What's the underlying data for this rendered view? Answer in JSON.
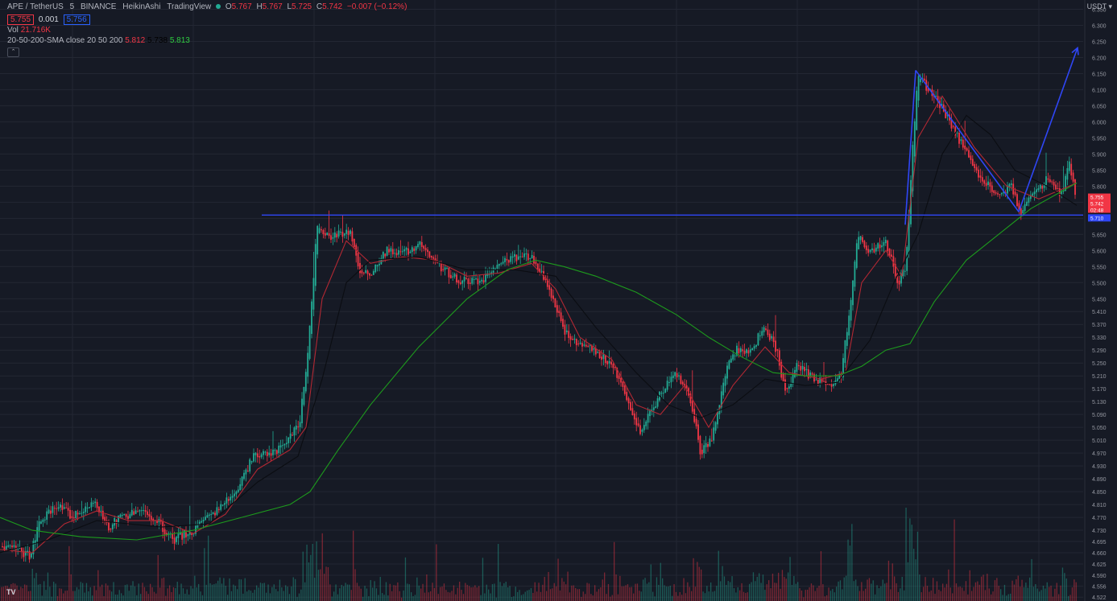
{
  "header": {
    "symbol": "APE / TetherUS",
    "interval": "5",
    "exchange": "BINANCE",
    "chart_style": "HeikinAshi",
    "source": "TradingView",
    "bid": "5.755",
    "spread": "0.001",
    "ask": "5.756",
    "o_label": "O",
    "o_value": "5.767",
    "h_label": "H",
    "h_value": "5.767",
    "l_label": "L",
    "l_value": "5.725",
    "c_label": "C",
    "c_value": "5.742",
    "change": "−0.007 (−0.12%)"
  },
  "volume_legend": {
    "label": "Vol",
    "value": "21.716K"
  },
  "sma_legend": {
    "label": "20-50-200-SMA close 20 50 200",
    "v20": "5.812",
    "v50": "5.738",
    "v200": "5.813"
  },
  "price_axis": {
    "unit": "USDT"
  },
  "colors": {
    "background": "#161a25",
    "grid": "#232733",
    "up": "#22ab94",
    "down": "#f23645",
    "sma20": "#b22833",
    "sma50": "#0b0d12",
    "sma200": "#1d9a1d",
    "drawing": "#2f46f5"
  },
  "chart_data": {
    "type": "candlestick",
    "chart_style": "HeikinAshi",
    "ylim": [
      4.52,
      6.36
    ],
    "y_ticks": [
      "6.350",
      "6.300",
      "6.250",
      "6.200",
      "6.150",
      "6.100",
      "6.050",
      "6.000",
      "5.950",
      "5.900",
      "5.850",
      "5.800",
      "5.750",
      "5.700",
      "5.650",
      "5.600",
      "5.550",
      "5.500",
      "5.450",
      "5.410",
      "5.370",
      "5.330",
      "5.290",
      "5.250",
      "5.210",
      "5.170",
      "5.130",
      "5.090",
      "5.050",
      "5.010",
      "4.970",
      "4.930",
      "4.890",
      "4.850",
      "4.810",
      "4.770",
      "4.730",
      "4.695",
      "4.660",
      "4.625",
      "4.590",
      "4.556",
      "4.522"
    ],
    "price_path": [
      [
        0,
        4.68
      ],
      [
        20,
        4.67
      ],
      [
        38,
        4.65
      ],
      [
        48,
        4.75
      ],
      [
        70,
        4.81
      ],
      [
        90,
        4.77
      ],
      [
        115,
        4.82
      ],
      [
        135,
        4.74
      ],
      [
        150,
        4.77
      ],
      [
        175,
        4.79
      ],
      [
        195,
        4.76
      ],
      [
        215,
        4.7
      ],
      [
        240,
        4.73
      ],
      [
        265,
        4.78
      ],
      [
        290,
        4.84
      ],
      [
        315,
        4.96
      ],
      [
        345,
        4.98
      ],
      [
        372,
        5.06
      ],
      [
        382,
        5.28
      ],
      [
        394,
        5.68
      ],
      [
        410,
        5.64
      ],
      [
        420,
        5.65
      ],
      [
        435,
        5.66
      ],
      [
        448,
        5.52
      ],
      [
        460,
        5.53
      ],
      [
        480,
        5.6
      ],
      [
        500,
        5.59
      ],
      [
        520,
        5.62
      ],
      [
        545,
        5.55
      ],
      [
        570,
        5.51
      ],
      [
        595,
        5.5
      ],
      [
        615,
        5.55
      ],
      [
        640,
        5.58
      ],
      [
        660,
        5.58
      ],
      [
        675,
        5.52
      ],
      [
        690,
        5.42
      ],
      [
        705,
        5.33
      ],
      [
        720,
        5.3
      ],
      [
        740,
        5.29
      ],
      [
        765,
        5.22
      ],
      [
        780,
        5.12
      ],
      [
        795,
        5.04
      ],
      [
        815,
        5.13
      ],
      [
        835,
        5.22
      ],
      [
        850,
        5.19
      ],
      [
        860,
        5.1
      ],
      [
        870,
        4.97
      ],
      [
        885,
        5.02
      ],
      [
        900,
        5.22
      ],
      [
        915,
        5.29
      ],
      [
        930,
        5.28
      ],
      [
        950,
        5.37
      ],
      [
        965,
        5.28
      ],
      [
        975,
        5.15
      ],
      [
        990,
        5.24
      ],
      [
        1010,
        5.2
      ],
      [
        1030,
        5.18
      ],
      [
        1045,
        5.22
      ],
      [
        1055,
        5.42
      ],
      [
        1065,
        5.65
      ],
      [
        1080,
        5.6
      ],
      [
        1100,
        5.63
      ],
      [
        1115,
        5.5
      ],
      [
        1125,
        5.55
      ],
      [
        1135,
        5.99
      ],
      [
        1140,
        6.14
      ],
      [
        1160,
        6.08
      ],
      [
        1180,
        6.0
      ],
      [
        1200,
        5.9
      ],
      [
        1220,
        5.82
      ],
      [
        1240,
        5.77
      ],
      [
        1255,
        5.8
      ],
      [
        1268,
        5.72
      ],
      [
        1285,
        5.78
      ],
      [
        1300,
        5.82
      ],
      [
        1318,
        5.77
      ],
      [
        1328,
        5.88
      ],
      [
        1337,
        5.742
      ]
    ],
    "sma_series": [
      {
        "name": "20",
        "color": "#b22833",
        "points": [
          [
            0,
            4.67
          ],
          [
            40,
            4.66
          ],
          [
            80,
            4.75
          ],
          [
            120,
            4.79
          ],
          [
            160,
            4.76
          ],
          [
            200,
            4.76
          ],
          [
            240,
            4.72
          ],
          [
            280,
            4.78
          ],
          [
            320,
            4.92
          ],
          [
            360,
            4.98
          ],
          [
            380,
            5.05
          ],
          [
            400,
            5.45
          ],
          [
            430,
            5.63
          ],
          [
            460,
            5.56
          ],
          [
            500,
            5.58
          ],
          [
            540,
            5.57
          ],
          [
            580,
            5.52
          ],
          [
            620,
            5.53
          ],
          [
            660,
            5.56
          ],
          [
            690,
            5.48
          ],
          [
            720,
            5.33
          ],
          [
            760,
            5.26
          ],
          [
            790,
            5.12
          ],
          [
            820,
            5.09
          ],
          [
            850,
            5.18
          ],
          [
            880,
            5.05
          ],
          [
            910,
            5.18
          ],
          [
            950,
            5.3
          ],
          [
            980,
            5.22
          ],
          [
            1020,
            5.2
          ],
          [
            1050,
            5.22
          ],
          [
            1070,
            5.5
          ],
          [
            1100,
            5.6
          ],
          [
            1120,
            5.52
          ],
          [
            1140,
            5.95
          ],
          [
            1170,
            6.08
          ],
          [
            1210,
            5.92
          ],
          [
            1250,
            5.8
          ],
          [
            1290,
            5.76
          ],
          [
            1337,
            5.81
          ]
        ]
      },
      {
        "name": "50",
        "color": "#0b0d12",
        "points": [
          [
            0,
            4.66
          ],
          [
            60,
            4.7
          ],
          [
            120,
            4.76
          ],
          [
            200,
            4.74
          ],
          [
            260,
            4.75
          ],
          [
            320,
            4.88
          ],
          [
            370,
            4.96
          ],
          [
            400,
            5.2
          ],
          [
            430,
            5.5
          ],
          [
            460,
            5.57
          ],
          [
            520,
            5.58
          ],
          [
            580,
            5.54
          ],
          [
            640,
            5.54
          ],
          [
            690,
            5.52
          ],
          [
            740,
            5.36
          ],
          [
            790,
            5.22
          ],
          [
            830,
            5.12
          ],
          [
            870,
            5.08
          ],
          [
            910,
            5.12
          ],
          [
            950,
            5.2
          ],
          [
            1000,
            5.18
          ],
          [
            1040,
            5.19
          ],
          [
            1080,
            5.32
          ],
          [
            1110,
            5.5
          ],
          [
            1140,
            5.65
          ],
          [
            1170,
            5.9
          ],
          [
            1200,
            6.02
          ],
          [
            1230,
            5.96
          ],
          [
            1260,
            5.85
          ],
          [
            1300,
            5.8
          ],
          [
            1337,
            5.74
          ]
        ]
      },
      {
        "name": "200",
        "color": "#1d9a1d",
        "points": [
          [
            0,
            4.77
          ],
          [
            40,
            4.73
          ],
          [
            100,
            4.71
          ],
          [
            170,
            4.7
          ],
          [
            240,
            4.73
          ],
          [
            300,
            4.77
          ],
          [
            360,
            4.81
          ],
          [
            385,
            4.85
          ],
          [
            420,
            4.98
          ],
          [
            460,
            5.12
          ],
          [
            520,
            5.3
          ],
          [
            580,
            5.45
          ],
          [
            630,
            5.54
          ],
          [
            665,
            5.57
          ],
          [
            700,
            5.55
          ],
          [
            740,
            5.52
          ],
          [
            790,
            5.47
          ],
          [
            840,
            5.4
          ],
          [
            880,
            5.33
          ],
          [
            920,
            5.27
          ],
          [
            960,
            5.22
          ],
          [
            1000,
            5.21
          ],
          [
            1040,
            5.21
          ],
          [
            1070,
            5.24
          ],
          [
            1100,
            5.29
          ],
          [
            1130,
            5.31
          ],
          [
            1160,
            5.44
          ],
          [
            1200,
            5.57
          ],
          [
            1240,
            5.65
          ],
          [
            1280,
            5.73
          ],
          [
            1337,
            5.81
          ]
        ]
      }
    ],
    "horizontal_line": {
      "y": 5.71,
      "label": "5.710"
    },
    "trend_lines": [
      [
        [
          1124,
          5.68
        ],
        [
          1137,
          6.16
        ]
      ],
      [
        [
          1137,
          6.16
        ],
        [
          1265,
          5.72
        ]
      ],
      [
        [
          1265,
          5.72
        ],
        [
          1338,
          6.23
        ]
      ]
    ],
    "current_price_labels": [
      "5.755",
      "5.742",
      "02:48",
      "5.710"
    ]
  }
}
